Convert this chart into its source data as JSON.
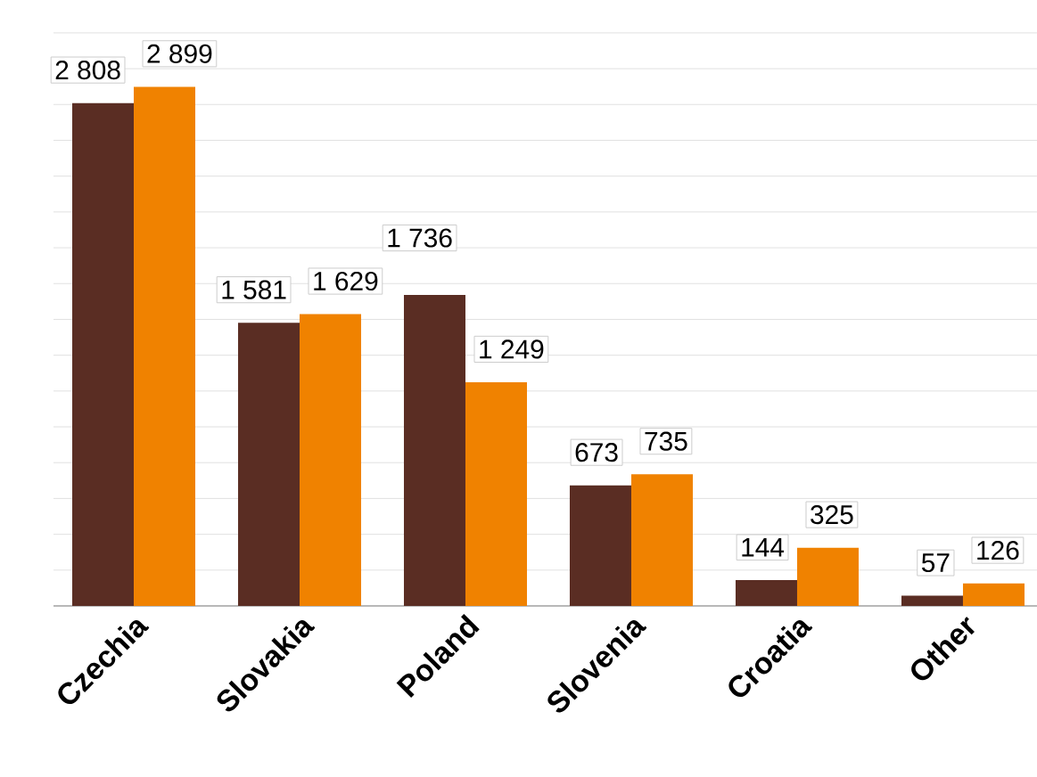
{
  "chart_data": {
    "type": "bar",
    "categories": [
      "Czechia",
      "Slovakia",
      "Poland",
      "Slovenia",
      "Croatia",
      "Other"
    ],
    "series": [
      {
        "color": "#5a2d23",
        "values": [
          2808,
          1581,
          1736,
          673,
          144,
          57
        ],
        "value_labels": [
          "2 808",
          "1 581",
          "1 736",
          "673",
          "144",
          "57"
        ]
      },
      {
        "color": "#f08200",
        "values": [
          2899,
          1629,
          1249,
          735,
          325,
          126
        ],
        "value_labels": [
          "2 899",
          "1 629",
          "1 249",
          "735",
          "325",
          "126"
        ]
      }
    ],
    "grid": "y",
    "tick_labels": "x"
  }
}
